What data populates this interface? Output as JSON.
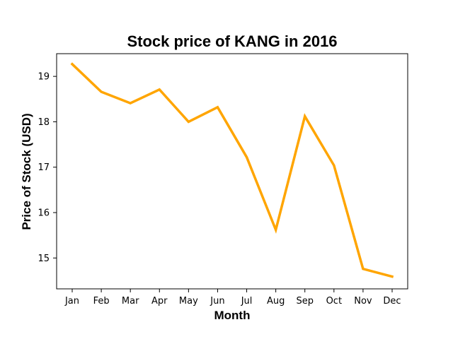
{
  "chart_data": {
    "type": "line",
    "title": "Stock price of KANG in 2016",
    "xlabel": "Month",
    "ylabel": "Price of Stock (USD)",
    "categories": [
      "Jan",
      "Feb",
      "Mar",
      "Apr",
      "May",
      "Jun",
      "Jul",
      "Aug",
      "Sep",
      "Oct",
      "Nov",
      "Dec"
    ],
    "series": [
      {
        "values": [
          19.27,
          18.66,
          18.41,
          18.71,
          18.0,
          18.32,
          17.22,
          15.62,
          18.12,
          17.04,
          14.76,
          14.59
        ]
      }
    ],
    "yticks": [
      15,
      16,
      17,
      18,
      19
    ],
    "ylim": [
      14.32,
      19.5
    ],
    "grid": false,
    "line_color": "#FFA500"
  }
}
